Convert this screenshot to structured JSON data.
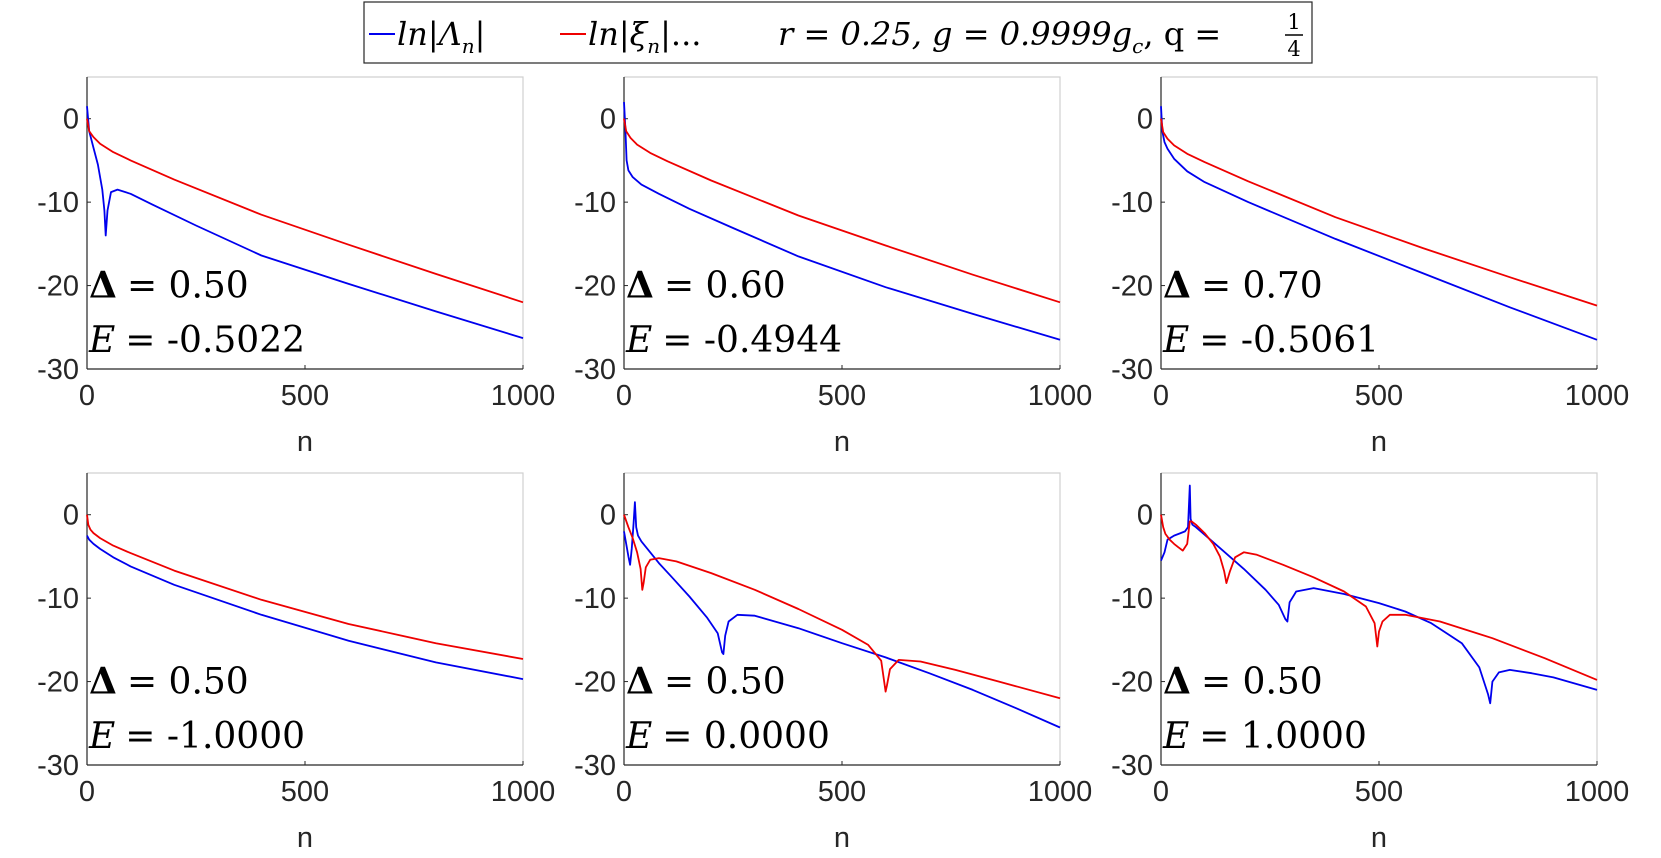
{
  "legend": {
    "series1_label": "ln|Λ",
    "series1_sub": "n",
    "series1_close": "|",
    "series2_label": "ln|ξ",
    "series2_sub": "n",
    "series2_close": "|...",
    "params_a": "r = 0.25, g = 0.9999g",
    "params_sub": "c",
    "params_b": ", q = ",
    "q_num": "1",
    "q_den": "4"
  },
  "colors": {
    "blue": "#0000ee",
    "red": "#ee0000",
    "axis": "#262626",
    "box": "#d0d0d0"
  },
  "chart_data": [
    {
      "type": "line",
      "xlabel": "n",
      "ylabel": "",
      "xlim": [
        0,
        1000
      ],
      "ylim": [
        -30,
        5
      ],
      "xticks": [
        "0",
        "500",
        "1000"
      ],
      "yticks": [
        "0",
        "-10",
        "-20",
        "-30"
      ],
      "annotation": {
        "delta_label": "Δ",
        "delta_value": "= 0.50",
        "e_label": "E",
        "e_value": "= -0.5022"
      },
      "series": [
        {
          "name": "ln|Λn|",
          "color": "blue",
          "x": [
            0,
            5,
            15,
            25,
            35,
            40,
            43,
            47,
            55,
            70,
            100,
            150,
            250,
            400,
            600,
            800,
            1000
          ],
          "y": [
            1.5,
            -1.5,
            -3.5,
            -5.5,
            -8.5,
            -11,
            -14,
            -11,
            -8.8,
            -8.5,
            -9.0,
            -10.3,
            -12.8,
            -16.4,
            -19.8,
            -23.1,
            -26.3
          ]
        },
        {
          "name": "ln|ξn|",
          "color": "red",
          "x": [
            0,
            5,
            15,
            30,
            60,
            100,
            200,
            400,
            600,
            800,
            1000
          ],
          "y": [
            0,
            -1.5,
            -2.2,
            -3.0,
            -4.0,
            -5.0,
            -7.3,
            -11.5,
            -15.1,
            -18.6,
            -22.0
          ]
        }
      ]
    },
    {
      "type": "line",
      "xlabel": "n",
      "ylabel": "",
      "xlim": [
        0,
        1000
      ],
      "ylim": [
        -30,
        5
      ],
      "xticks": [
        "0",
        "500",
        "1000"
      ],
      "yticks": [
        "0",
        "-10",
        "-20",
        "-30"
      ],
      "annotation": {
        "delta_label": "Δ",
        "delta_value": "= 0.60",
        "e_label": "E",
        "e_value": "= -0.4944"
      },
      "series": [
        {
          "name": "ln|Λn|",
          "color": "blue",
          "x": [
            0,
            3,
            6,
            10,
            20,
            40,
            80,
            150,
            250,
            400,
            600,
            800,
            1000
          ],
          "y": [
            2,
            -1,
            -5,
            -6.2,
            -7.0,
            -7.9,
            -9.0,
            -10.8,
            -13.1,
            -16.5,
            -20.2,
            -23.4,
            -26.5
          ]
        },
        {
          "name": "ln|ξn|",
          "color": "red",
          "x": [
            0,
            5,
            15,
            30,
            60,
            100,
            200,
            400,
            600,
            800,
            1000
          ],
          "y": [
            0,
            -1.5,
            -2.3,
            -3.1,
            -4.1,
            -5.1,
            -7.4,
            -11.6,
            -15.2,
            -18.7,
            -22.0
          ]
        }
      ]
    },
    {
      "type": "line",
      "xlabel": "n",
      "ylabel": "",
      "xlim": [
        0,
        1000
      ],
      "ylim": [
        -30,
        5
      ],
      "xticks": [
        "0",
        "500",
        "1000"
      ],
      "yticks": [
        "0",
        "-10",
        "-20",
        "-30"
      ],
      "annotation": {
        "delta_label": "Δ",
        "delta_value": "= 0.70",
        "e_label": "E",
        "e_value": "= -0.5061"
      },
      "series": [
        {
          "name": "ln|Λn|",
          "color": "blue",
          "x": [
            0,
            3,
            8,
            15,
            30,
            60,
            100,
            200,
            400,
            600,
            800,
            1000
          ],
          "y": [
            1.5,
            -1.5,
            -2.8,
            -3.6,
            -4.8,
            -6.3,
            -7.6,
            -10.0,
            -14.4,
            -18.5,
            -22.6,
            -26.5
          ]
        },
        {
          "name": "ln|ξn|",
          "color": "red",
          "x": [
            0,
            5,
            15,
            30,
            60,
            100,
            200,
            400,
            600,
            800,
            1000
          ],
          "y": [
            0,
            -1.6,
            -2.4,
            -3.2,
            -4.2,
            -5.2,
            -7.5,
            -11.8,
            -15.5,
            -19.0,
            -22.4
          ]
        }
      ]
    },
    {
      "type": "line",
      "xlabel": "n",
      "ylabel": "",
      "xlim": [
        0,
        1000
      ],
      "ylim": [
        -30,
        5
      ],
      "xticks": [
        "0",
        "500",
        "1000"
      ],
      "yticks": [
        "0",
        "-10",
        "-20",
        "-30"
      ],
      "annotation": {
        "delta_label": "Δ",
        "delta_value": "= 0.50",
        "e_label": "E",
        "e_value": "= -1.0000"
      },
      "series": [
        {
          "name": "ln|Λn|",
          "color": "blue",
          "x": [
            0,
            5,
            15,
            30,
            60,
            100,
            200,
            400,
            600,
            800,
            1000
          ],
          "y": [
            -2.5,
            -3.0,
            -3.5,
            -4.1,
            -5.1,
            -6.2,
            -8.4,
            -12.0,
            -15.1,
            -17.7,
            -19.7
          ]
        },
        {
          "name": "ln|ξn|",
          "color": "red",
          "x": [
            0,
            3,
            8,
            15,
            30,
            60,
            100,
            200,
            400,
            600,
            800,
            1000
          ],
          "y": [
            0,
            -1.2,
            -1.8,
            -2.2,
            -2.8,
            -3.7,
            -4.6,
            -6.7,
            -10.2,
            -13.1,
            -15.4,
            -17.3
          ]
        }
      ]
    },
    {
      "type": "line",
      "xlabel": "n",
      "ylabel": "",
      "xlim": [
        0,
        1000
      ],
      "ylim": [
        -30,
        5
      ],
      "xticks": [
        "0",
        "500",
        "1000"
      ],
      "yticks": [
        "0",
        "-10",
        "-20",
        "-30"
      ],
      "annotation": {
        "delta_label": "Δ",
        "delta_value": "= 0.50",
        "e_label": "E",
        "e_value": "= 0.0000"
      },
      "series": [
        {
          "name": "ln|Λn|",
          "color": "blue",
          "x": [
            0,
            5,
            10,
            14,
            18,
            22,
            25,
            28,
            32,
            40,
            60,
            80,
            110,
            150,
            190,
            215,
            225,
            228,
            232,
            240,
            260,
            300,
            400,
            500,
            600,
            700,
            800,
            900,
            1000
          ],
          "y": [
            -2,
            -3.5,
            -5,
            -6,
            -4,
            -1,
            1.5,
            -1.5,
            -2.5,
            -3.2,
            -4.5,
            -5.8,
            -7.5,
            -9.8,
            -12.3,
            -14.2,
            -16.5,
            -16.7,
            -14.5,
            -12.8,
            -12.0,
            -12.1,
            -13.6,
            -15.4,
            -17.1,
            -19.0,
            -21.0,
            -23.2,
            -25.5
          ]
        },
        {
          "name": "ln|ξn|",
          "color": "red",
          "x": [
            0,
            10,
            20,
            30,
            38,
            42,
            45,
            50,
            60,
            80,
            120,
            200,
            300,
            400,
            500,
            560,
            590,
            600,
            603,
            610,
            630,
            680,
            760,
            860,
            1000
          ],
          "y": [
            0,
            -1.5,
            -2.8,
            -4.5,
            -6.5,
            -9.0,
            -8.2,
            -6.3,
            -5.4,
            -5.2,
            -5.6,
            -7.0,
            -9.0,
            -11.3,
            -13.8,
            -15.6,
            -17.5,
            -21.2,
            -20.5,
            -18.5,
            -17.4,
            -17.6,
            -18.6,
            -20.0,
            -22.0
          ]
        }
      ]
    },
    {
      "type": "line",
      "xlabel": "n",
      "ylabel": "",
      "xlim": [
        0,
        1000
      ],
      "ylim": [
        -30,
        5
      ],
      "xticks": [
        "0",
        "500",
        "1000"
      ],
      "yticks": [
        "0",
        "-10",
        "-20",
        "-30"
      ],
      "annotation": {
        "delta_label": "Δ",
        "delta_value": "= 0.50",
        "e_label": "E",
        "e_value": "= 1.0000"
      },
      "series": [
        {
          "name": "ln|Λn|",
          "color": "blue",
          "x": [
            0,
            8,
            15,
            30,
            45,
            55,
            62,
            66,
            68,
            72,
            80,
            100,
            140,
            190,
            240,
            270,
            285,
            290,
            295,
            310,
            350,
            420,
            500,
            560,
            620,
            690,
            730,
            750,
            755,
            760,
            775,
            800,
            850,
            900,
            1000
          ],
          "y": [
            -5.5,
            -4.5,
            -3,
            -2.5,
            -2.2,
            -2.0,
            -1.5,
            3.5,
            -0.5,
            -1.2,
            -1.5,
            -2.4,
            -4.2,
            -6.5,
            -9.0,
            -10.8,
            -12.5,
            -12.8,
            -10.5,
            -9.2,
            -8.8,
            -9.5,
            -10.6,
            -11.6,
            -13.0,
            -15.4,
            -18.3,
            -21.5,
            -22.6,
            -20.0,
            -18.9,
            -18.6,
            -19.0,
            -19.5,
            -21.0
          ]
        },
        {
          "name": "ln|ξn|",
          "color": "red",
          "x": [
            0,
            5,
            10,
            20,
            30,
            40,
            50,
            60,
            66,
            70,
            80,
            100,
            120,
            135,
            145,
            150,
            158,
            170,
            190,
            220,
            280,
            350,
            420,
            470,
            490,
            496,
            500,
            508,
            525,
            560,
            640,
            760,
            880,
            1000
          ],
          "y": [
            0,
            -1.5,
            -2.3,
            -3.0,
            -3.5,
            -3.9,
            -4.3,
            -3.5,
            -0.8,
            -0.8,
            -1.2,
            -2.2,
            -3.5,
            -5.0,
            -6.8,
            -8.2,
            -6.8,
            -5.1,
            -4.5,
            -4.8,
            -6.0,
            -7.5,
            -9.2,
            -11.0,
            -13.0,
            -15.8,
            -14.0,
            -12.8,
            -12.0,
            -12.0,
            -12.8,
            -14.8,
            -17.2,
            -19.8
          ]
        }
      ]
    }
  ]
}
